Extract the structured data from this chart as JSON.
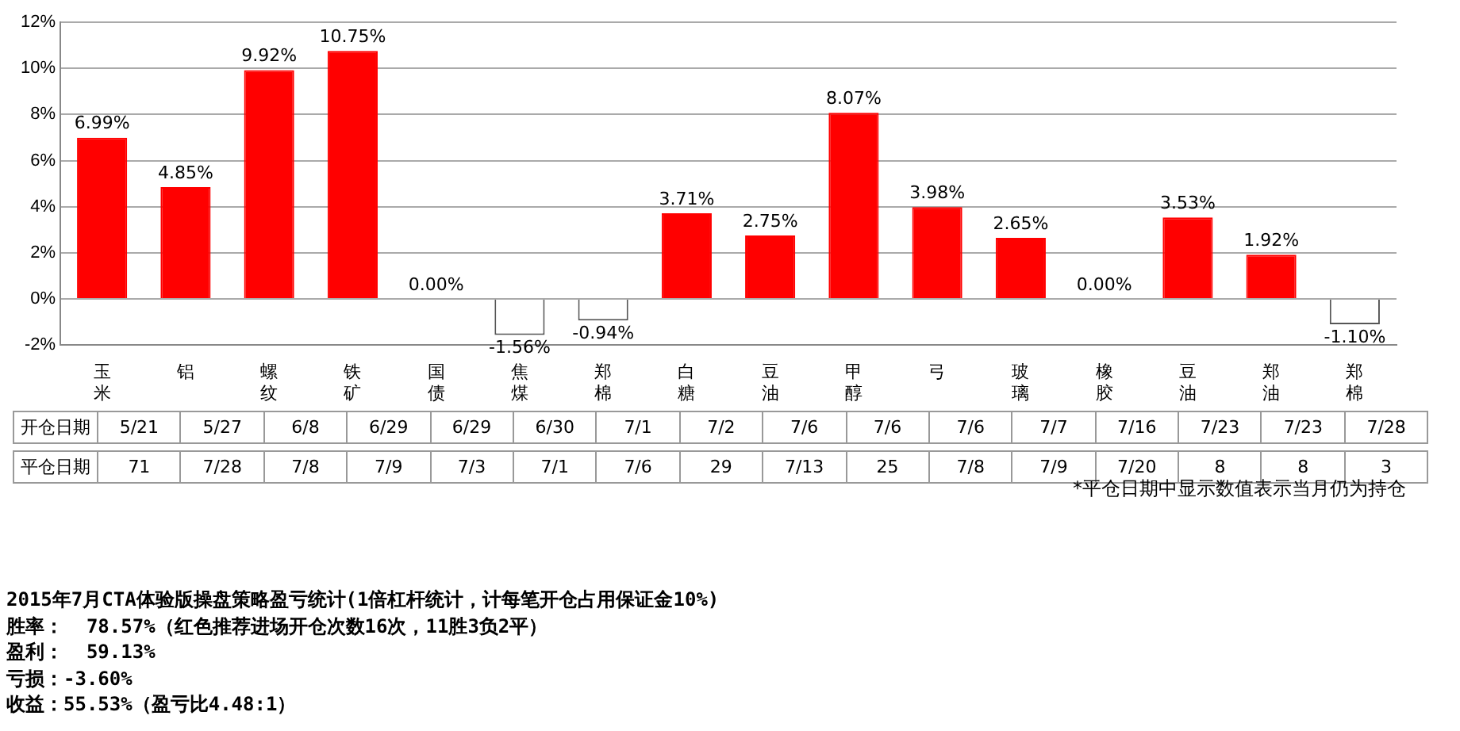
{
  "chart_data": {
    "type": "bar",
    "title": "2015年7月CTA体验版操盘策略盈亏统计(1倍杠杆统计，计每笔开仓占用保证金10%)",
    "categories": [
      "玉米",
      "铝",
      "螺纹",
      "铁矿",
      "国债",
      "焦煤",
      "郑棉",
      "白糖",
      "豆油",
      "甲醇",
      "弓",
      "玻璃",
      "橡胶",
      "豆油",
      "郑油",
      "郑棉"
    ],
    "values": [
      6.99,
      4.85,
      9.92,
      10.75,
      0.0,
      -1.56,
      -0.94,
      3.71,
      2.75,
      8.07,
      3.98,
      2.65,
      0.0,
      3.53,
      1.92,
      -1.1
    ],
    "colors": [
      "#ff0000",
      "#ff0000",
      "#ff0000",
      "#ff0000",
      "#ff0000",
      "#ffffff",
      "#ffffff",
      "#ff0000",
      "#ff0000",
      "#ff0000",
      "#ff0000",
      "#ff0000",
      "#ff0000",
      "#ff0000",
      "#ff0000",
      "#ffffff"
    ],
    "value_labels": [
      "6.99%",
      "4.85%",
      "9.92%",
      "10.75%",
      "0.00%",
      "-1.56%",
      "-0.94%",
      "3.71%",
      "2.75%",
      "8.07%",
      "3.98%",
      "2.65%",
      "0.00%",
      "3.53%",
      "1.92%",
      "-1.10%"
    ],
    "ylim": [
      -2,
      12
    ],
    "yticks": [
      {
        "value": -2,
        "label": "-2%"
      },
      {
        "value": 0,
        "label": "0%"
      },
      {
        "value": 2,
        "label": "2%"
      },
      {
        "value": 4,
        "label": "4%"
      },
      {
        "value": 6,
        "label": "6%"
      },
      {
        "value": 8,
        "label": "8%"
      },
      {
        "value": 10,
        "label": "10%"
      },
      {
        "value": 12,
        "label": "12%"
      }
    ],
    "grid": "y",
    "legend": false,
    "annotations": [
      "开仓日期",
      "5/21",
      "5/27",
      "6/8",
      "6/29",
      "6/29",
      "6/30",
      "7/1",
      "7/2",
      "7/6",
      "7/6",
      "7/6",
      "7/7",
      "7/16",
      "7/23",
      "7/23",
      "7/28",
      "平仓日期",
      "71",
      "7/28",
      "7/8",
      "7/9",
      "7/3",
      "7/1",
      "7/6",
      "29",
      "7/13",
      "25",
      "7/8",
      "7/9",
      "7/20",
      "8",
      "8",
      "3",
      "*平仓日期中显示数值表示当月仍为持仓",
      "胜率：  78.57%（红色推荐进场开仓次数16次，11胜3负2平）",
      "盈利：  59.13%",
      "亏损：-3.60%",
      "收益：55.53%（盈亏比4.48:1）"
    ]
  }
}
